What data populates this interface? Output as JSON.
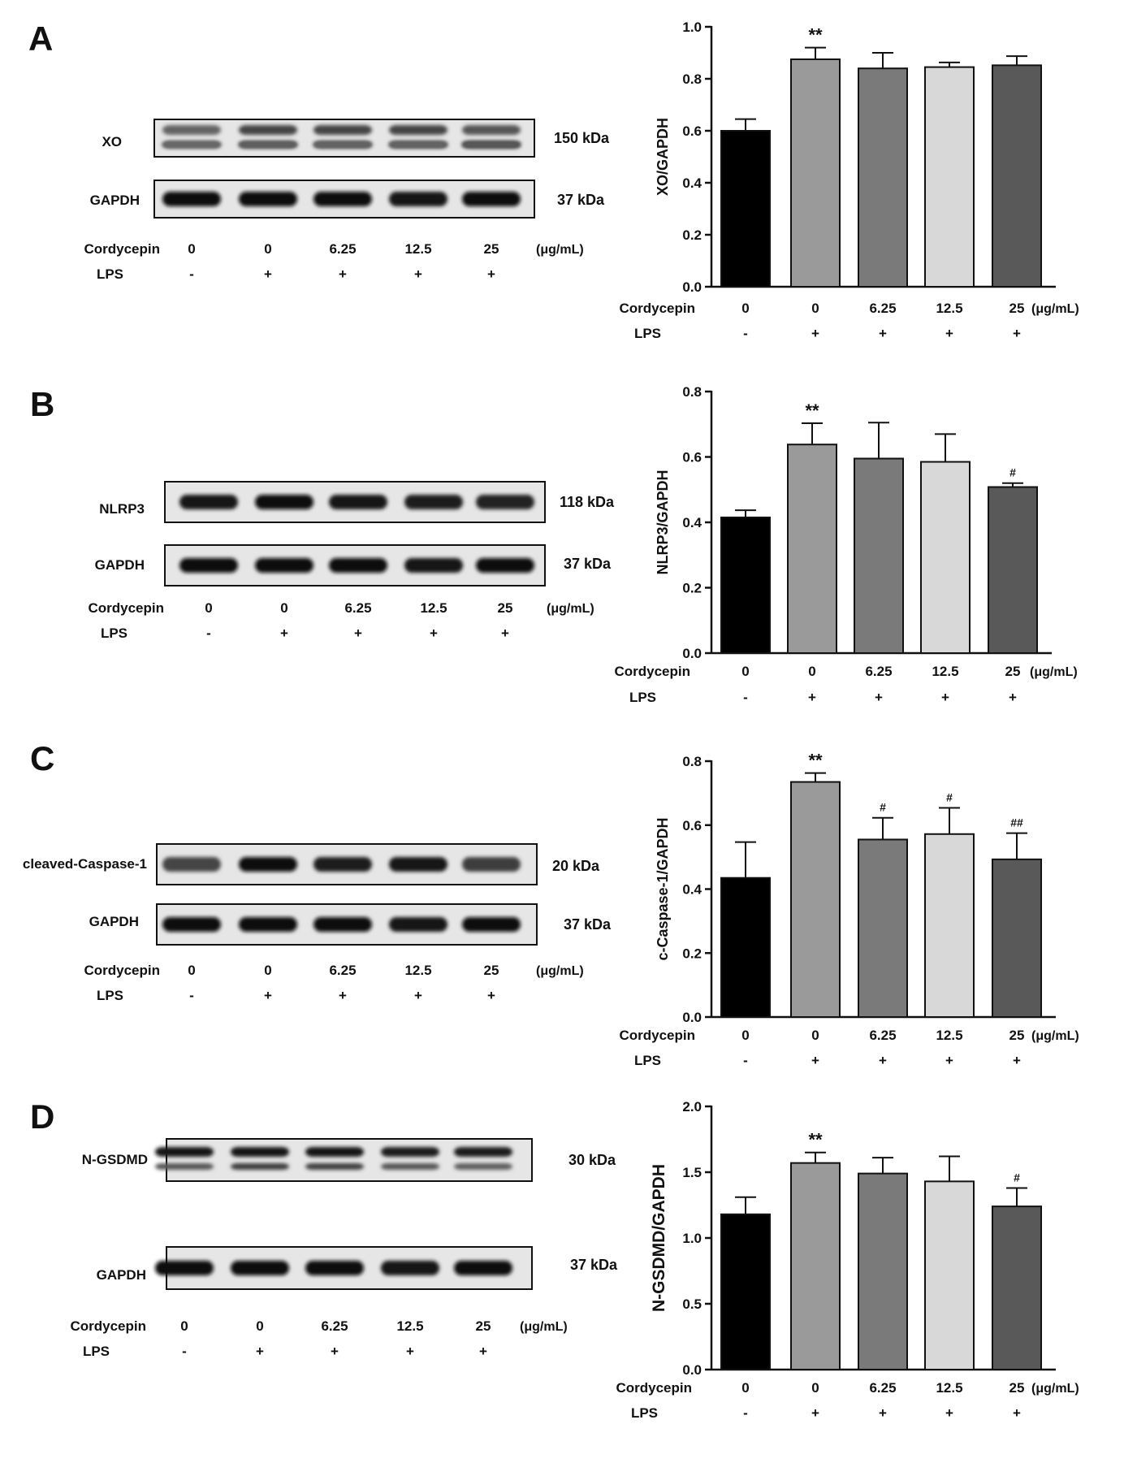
{
  "figure": {
    "panels": [
      {
        "letter": "A",
        "western_blot": {
          "rows": [
            {
              "protein": "XO",
              "kda": "150 kDa"
            },
            {
              "protein": "GAPDH",
              "kda": "37 kDa"
            }
          ],
          "cordycepin_label": "Cordycepin",
          "lps_label": "LPS",
          "doses": [
            "0",
            "0",
            "6.25",
            "12.5",
            "25"
          ],
          "unit": "(μg/mL)",
          "lps": [
            "-",
            "+",
            "+",
            "+",
            "+"
          ]
        }
      },
      {
        "letter": "B",
        "western_blot": {
          "rows": [
            {
              "protein": "NLRP3",
              "kda": "118 kDa"
            },
            {
              "protein": "GAPDH",
              "kda": "37 kDa"
            }
          ],
          "cordycepin_label": "Cordycepin",
          "lps_label": "LPS",
          "doses": [
            "0",
            "0",
            "6.25",
            "12.5",
            "25"
          ],
          "unit": "(μg/mL)",
          "lps": [
            "-",
            "+",
            "+",
            "+",
            "+"
          ]
        }
      },
      {
        "letter": "C",
        "western_blot": {
          "rows": [
            {
              "protein": "cleaved-Caspase-1",
              "kda": "20 kDa"
            },
            {
              "protein": "GAPDH",
              "kda": "37 kDa"
            }
          ],
          "cordycepin_label": "Cordycepin",
          "lps_label": "LPS",
          "doses": [
            "0",
            "0",
            "6.25",
            "12.5",
            "25"
          ],
          "unit": "(μg/mL)",
          "lps": [
            "-",
            "+",
            "+",
            "+",
            "+"
          ]
        }
      },
      {
        "letter": "D",
        "western_blot": {
          "rows": [
            {
              "protein": "N-GSDMD",
              "kda": "30 kDa"
            },
            {
              "protein": "GAPDH",
              "kda": "37 kDa"
            }
          ],
          "cordycepin_label": "Cordycepin",
          "lps_label": "LPS",
          "doses": [
            "0",
            "0",
            "6.25",
            "12.5",
            "25"
          ],
          "unit": "(μg/mL)",
          "lps": [
            "-",
            "+",
            "+",
            "+",
            "+"
          ]
        }
      }
    ]
  },
  "colors": {
    "bars": [
      "#000000",
      "#9a9a9a",
      "#7a7a7a",
      "#d8d8d8",
      "#595959"
    ]
  },
  "chart_data": [
    {
      "type": "bar",
      "panel": "A",
      "ylabel": "XO/GAPDH",
      "ylim": [
        0,
        1.0
      ],
      "yticks": [
        "0.0",
        "0.2",
        "0.4",
        "0.6",
        "0.8",
        "1.0"
      ],
      "categories": [
        "0",
        "0",
        "6.25",
        "12.5",
        "25"
      ],
      "unit": "(μg/mL)",
      "cordycepin_label": "Cordycepin",
      "lps_label": "LPS",
      "lps": [
        "-",
        "+",
        "+",
        "+",
        "+"
      ],
      "values": [
        0.6,
        0.875,
        0.84,
        0.845,
        0.852
      ],
      "errors": [
        0.045,
        0.045,
        0.06,
        0.018,
        0.035
      ],
      "significance": [
        "",
        "**",
        "",
        "",
        ""
      ]
    },
    {
      "type": "bar",
      "panel": "B",
      "ylabel": "NLRP3/GAPDH",
      "ylim": [
        0,
        0.8
      ],
      "yticks": [
        "0.0",
        "0.2",
        "0.4",
        "0.6",
        "0.8"
      ],
      "categories": [
        "0",
        "0",
        "6.25",
        "12.5",
        "25"
      ],
      "unit": "(μg/mL)",
      "cordycepin_label": "Cordycepin",
      "lps_label": "LPS",
      "lps": [
        "-",
        "+",
        "+",
        "+",
        "+"
      ],
      "values": [
        0.415,
        0.638,
        0.595,
        0.585,
        0.508
      ],
      "errors": [
        0.022,
        0.065,
        0.11,
        0.085,
        0.012
      ],
      "significance": [
        "",
        "**",
        "",
        "",
        "#"
      ]
    },
    {
      "type": "bar",
      "panel": "C",
      "ylabel": "c-Caspase-1/GAPDH",
      "ylim": [
        0,
        0.8
      ],
      "yticks": [
        "0.0",
        "0.2",
        "0.4",
        "0.6",
        "0.8"
      ],
      "categories": [
        "0",
        "0",
        "6.25",
        "12.5",
        "25"
      ],
      "unit": "(μg/mL)",
      "cordycepin_label": "Cordycepin",
      "lps_label": "LPS",
      "lps": [
        "-",
        "+",
        "+",
        "+",
        "+"
      ],
      "values": [
        0.435,
        0.735,
        0.555,
        0.572,
        0.493
      ],
      "errors": [
        0.112,
        0.028,
        0.068,
        0.082,
        0.082
      ],
      "significance": [
        "",
        "**",
        "#",
        "#",
        "##"
      ]
    },
    {
      "type": "bar",
      "panel": "D",
      "ylabel": "N-GSDMD/GAPDH",
      "ylim": [
        0,
        2.0
      ],
      "yticks": [
        "0.0",
        "0.5",
        "1.0",
        "1.5",
        "2.0"
      ],
      "categories": [
        "0",
        "0",
        "6.25",
        "12.5",
        "25"
      ],
      "unit": "(μg/mL)",
      "cordycepin_label": "Cordycepin",
      "lps_label": "LPS",
      "lps": [
        "-",
        "+",
        "+",
        "+",
        "+"
      ],
      "values": [
        1.18,
        1.57,
        1.49,
        1.43,
        1.24
      ],
      "errors": [
        0.13,
        0.08,
        0.12,
        0.19,
        0.14
      ],
      "significance": [
        "",
        "**",
        "",
        "",
        "#"
      ]
    }
  ]
}
